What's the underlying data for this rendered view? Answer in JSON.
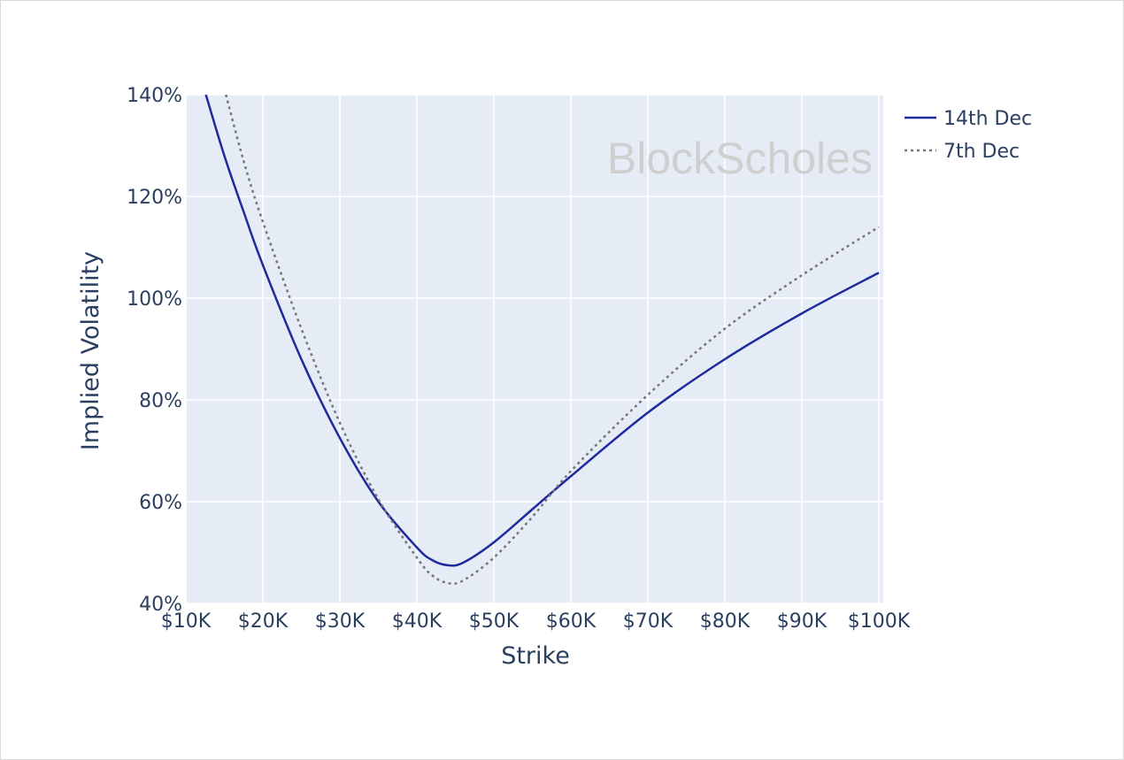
{
  "chart_data": {
    "type": "line",
    "title": "",
    "xlabel": "Strike",
    "ylabel": "Implied Volatility",
    "xlim": [
      10,
      100
    ],
    "ylim": [
      40,
      140
    ],
    "x_unit": "thousand USD",
    "y_unit": "percent",
    "grid": true,
    "legend_placement": "top-right outside",
    "watermark": "BlockScholes",
    "x_ticks": [
      {
        "v": 10,
        "label": "$10K"
      },
      {
        "v": 20,
        "label": "$20K"
      },
      {
        "v": 30,
        "label": "$30K"
      },
      {
        "v": 40,
        "label": "$40K"
      },
      {
        "v": 50,
        "label": "$50K"
      },
      {
        "v": 60,
        "label": "$60K"
      },
      {
        "v": 70,
        "label": "$70K"
      },
      {
        "v": 80,
        "label": "$80K"
      },
      {
        "v": 90,
        "label": "$90K"
      },
      {
        "v": 100,
        "label": "$100K"
      }
    ],
    "y_ticks": [
      {
        "v": 40,
        "label": "40%"
      },
      {
        "v": 60,
        "label": "60%"
      },
      {
        "v": 80,
        "label": "80%"
      },
      {
        "v": 100,
        "label": "100%"
      },
      {
        "v": 120,
        "label": "120%"
      },
      {
        "v": 140,
        "label": "140%"
      }
    ],
    "series": [
      {
        "name": "14th Dec",
        "color": "#1f2a9c",
        "dash": "solid",
        "x": [
          12.6,
          15,
          17.5,
          20,
          25,
          30,
          35,
          40,
          42,
          44,
          46,
          50,
          55,
          60,
          70,
          80,
          90,
          100
        ],
        "y": [
          140,
          128,
          117,
          106.5,
          88,
          72.5,
          60,
          51,
          48.5,
          47.5,
          48,
          52,
          58.5,
          65,
          77.5,
          88,
          97,
          105
        ]
      },
      {
        "name": "7th Dec",
        "color": "#777777",
        "dash": "dot",
        "x": [
          15.2,
          17.5,
          20,
          25,
          30,
          35,
          40,
          42,
          44,
          46,
          50,
          55,
          60,
          70,
          80,
          90,
          100
        ],
        "y": [
          140,
          127,
          115,
          94,
          75.5,
          60.5,
          49,
          45.5,
          44,
          44.5,
          49,
          57,
          66,
          81,
          94,
          104.5,
          114
        ]
      }
    ]
  }
}
